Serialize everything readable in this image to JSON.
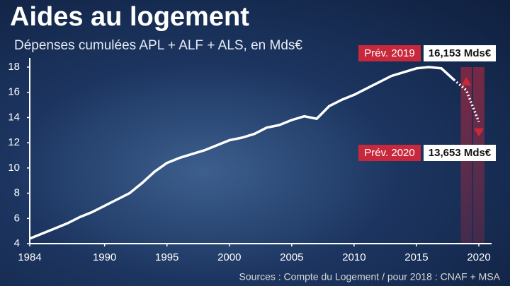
{
  "chart_data": {
    "type": "line",
    "title": "Aides au logement",
    "subtitle": "Dépenses cumulées APL + ALF + ALS, en Mds€",
    "source": "Sources : Compte du Logement / pour 2018 : CNAF + MSA",
    "x": [
      1984,
      1985,
      1986,
      1987,
      1988,
      1989,
      1990,
      1991,
      1992,
      1993,
      1994,
      1995,
      1996,
      1997,
      1998,
      1999,
      2000,
      2001,
      2002,
      2003,
      2004,
      2005,
      2006,
      2007,
      2008,
      2009,
      2010,
      2011,
      2012,
      2013,
      2014,
      2015,
      2016,
      2017,
      2018,
      2019,
      2020
    ],
    "series": [
      {
        "color": "#ffffff",
        "style": "solid",
        "values": [
          4.4,
          4.8,
          5.2,
          5.6,
          6.1,
          6.5,
          7.0,
          7.5,
          8.0,
          8.8,
          9.7,
          10.4,
          10.8,
          11.1,
          11.4,
          11.8,
          12.2,
          12.4,
          12.7,
          13.2,
          13.4,
          13.8,
          14.1,
          13.9,
          14.9,
          15.4,
          15.8,
          16.3,
          16.8,
          17.3,
          17.6,
          17.9,
          18.0,
          17.9,
          17.0,
          null,
          null
        ]
      },
      {
        "color": "#ffffff",
        "style": "dotted",
        "values": [
          null,
          null,
          null,
          null,
          null,
          null,
          null,
          null,
          null,
          null,
          null,
          null,
          null,
          null,
          null,
          null,
          null,
          null,
          null,
          null,
          null,
          null,
          null,
          null,
          null,
          null,
          null,
          null,
          null,
          null,
          null,
          null,
          null,
          null,
          17.0,
          16.153,
          13.653
        ]
      }
    ],
    "annotations": [
      {
        "label": "Prév. 2019",
        "x": 2019,
        "value": 16.153,
        "value_label": "16,153 Mds€",
        "marker": "down"
      },
      {
        "label": "Prév. 2020",
        "x": 2020,
        "value": 13.653,
        "value_label": "13,653 Mds€",
        "marker": "up"
      }
    ],
    "highlight_color": "#c8283c",
    "xlim": [
      1984,
      2020
    ],
    "xticks": [
      1984,
      1990,
      1995,
      2000,
      2005,
      2010,
      2015,
      2020
    ],
    "ylim": [
      4,
      18
    ],
    "yticks": [
      4,
      6,
      8,
      10,
      12,
      14,
      16,
      18
    ]
  }
}
